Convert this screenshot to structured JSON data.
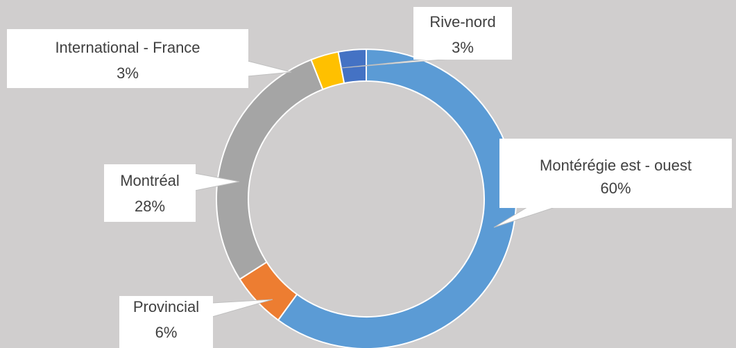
{
  "chart_data": {
    "type": "donut",
    "categories": [
      "Montérégie est - ouest",
      "Provincial",
      "Montréal",
      "International - France",
      "Rive-nord"
    ],
    "values": [
      60,
      6,
      28,
      3,
      3
    ],
    "value_labels": [
      "60%",
      "6%",
      "28%",
      "3%",
      "3%"
    ],
    "colors": [
      "#5b9bd5",
      "#ed7d31",
      "#a5a5a5",
      "#ffc000",
      "#4472c4"
    ]
  }
}
